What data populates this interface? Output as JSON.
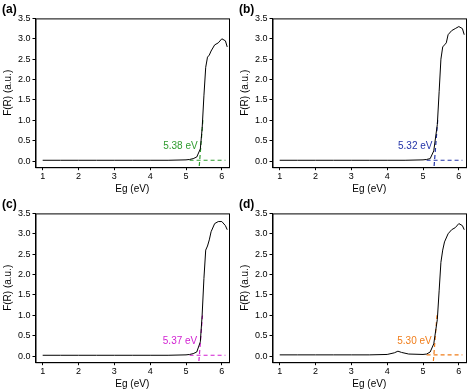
{
  "chart_data": [
    {
      "type": "line",
      "title": "(a)",
      "x_label": "Eg (eV)",
      "y_label": "F(R) (a.u.)",
      "xlim": [
        0.8,
        6.2
      ],
      "xticks": [
        1,
        2,
        3,
        4,
        5,
        6
      ],
      "ylim": [
        -0.15,
        3.5
      ],
      "yticks": [
        {
          "value": 0,
          "label": "0.0"
        },
        0.5,
        {
          "value": 1,
          "label": "1.0"
        },
        1.5,
        {
          "value": 2,
          "label": "2.0"
        },
        2.5,
        {
          "value": 3,
          "label": "3.0"
        },
        3.5
      ],
      "grid": false,
      "annotation": {
        "text": "5.38 eV",
        "value": 5.38,
        "color": "#2e9b2e"
      },
      "series": [
        {
          "color": "#000000",
          "line_style": "solid",
          "x": [
            1,
            1.5,
            2,
            2.5,
            3,
            3.5,
            4,
            4.5,
            5,
            5.1,
            5.2,
            5.3,
            5.4,
            5.45,
            5.5,
            5.55,
            5.6,
            5.65,
            5.7,
            5.8,
            5.9,
            6.0,
            6.1,
            6.15
          ],
          "values": [
            0.02,
            0.02,
            0.02,
            0.02,
            0.02,
            0.02,
            0.02,
            0.02,
            0.03,
            0.04,
            0.06,
            0.1,
            0.3,
            0.8,
            1.6,
            2.3,
            2.55,
            2.6,
            2.7,
            2.85,
            2.9,
            3.0,
            2.95,
            2.8
          ]
        },
        {
          "color": "#2e9b2e",
          "line_style": "dashed",
          "x": [
            5.37,
            5.47
          ],
          "values": [
            -0.12,
            1.0
          ]
        },
        {
          "color": "#2e9b2e",
          "line_style": "dashed",
          "x": [
            5.1,
            6.1
          ],
          "values": [
            0.02,
            0.02
          ]
        }
      ]
    },
    {
      "type": "line",
      "title": "(b)",
      "x_label": "Eg (eV)",
      "y_label": "F(R) (a.u.)",
      "xlim": [
        0.8,
        6.2
      ],
      "xticks": [
        1,
        2,
        3,
        4,
        5,
        6
      ],
      "ylim": [
        -0.15,
        3.5
      ],
      "yticks": [
        {
          "value": 0,
          "label": "0.0"
        },
        0.5,
        {
          "value": 1,
          "label": "1.0"
        },
        1.5,
        {
          "value": 2,
          "label": "2.0"
        },
        2.5,
        {
          "value": 3,
          "label": "3.0"
        },
        3.5
      ],
      "grid": false,
      "annotation": {
        "text": "5.32 eV",
        "value": 5.32,
        "color": "#2233a8"
      },
      "series": [
        {
          "color": "#000000",
          "line_style": "solid",
          "x": [
            1,
            1.5,
            2,
            2.5,
            3,
            3.5,
            4,
            4.5,
            5,
            5.1,
            5.2,
            5.3,
            5.4,
            5.45,
            5.5,
            5.55,
            5.6,
            5.65,
            5.7,
            5.8,
            5.9,
            6.0,
            6.1,
            6.15
          ],
          "values": [
            0.02,
            0.02,
            0.02,
            0.02,
            0.02,
            0.02,
            0.02,
            0.02,
            0.03,
            0.04,
            0.06,
            0.25,
            0.9,
            1.7,
            2.5,
            2.8,
            2.85,
            2.9,
            3.1,
            3.2,
            3.25,
            3.3,
            3.25,
            3.1
          ]
        },
        {
          "color": "#2233a8",
          "line_style": "dashed",
          "x": [
            5.31,
            5.41
          ],
          "values": [
            -0.12,
            1.0
          ]
        },
        {
          "color": "#2233a8",
          "line_style": "dashed",
          "x": [
            5.1,
            6.1
          ],
          "values": [
            0.02,
            0.02
          ]
        }
      ]
    },
    {
      "type": "line",
      "title": "(c)",
      "x_label": "Eg (eV)",
      "y_label": "F(R) (a.u.)",
      "xlim": [
        0.8,
        6.2
      ],
      "xticks": [
        1,
        2,
        3,
        4,
        5,
        6
      ],
      "ylim": [
        -0.15,
        3.5
      ],
      "yticks": [
        {
          "value": 0,
          "label": "0.0"
        },
        0.5,
        {
          "value": 1,
          "label": "1.0"
        },
        1.5,
        {
          "value": 2,
          "label": "2.0"
        },
        2.5,
        {
          "value": 3,
          "label": "3.0"
        },
        3.5
      ],
      "grid": false,
      "annotation": {
        "text": "5.37 eV",
        "value": 5.37,
        "color": "#d11fd1"
      },
      "series": [
        {
          "color": "#000000",
          "line_style": "solid",
          "x": [
            1,
            1.5,
            2,
            2.5,
            3,
            3.5,
            4,
            4.5,
            5,
            5.1,
            5.2,
            5.3,
            5.4,
            5.45,
            5.5,
            5.55,
            5.6,
            5.65,
            5.7,
            5.8,
            5.9,
            6.0,
            6.1,
            6.15
          ],
          "values": [
            0.02,
            0.02,
            0.02,
            0.02,
            0.02,
            0.02,
            0.02,
            0.02,
            0.03,
            0.04,
            0.06,
            0.1,
            0.35,
            1.0,
            1.9,
            2.6,
            2.7,
            2.85,
            3.05,
            3.25,
            3.3,
            3.3,
            3.2,
            3.1
          ]
        },
        {
          "color": "#d11fd1",
          "line_style": "dashed",
          "x": [
            5.36,
            5.46
          ],
          "values": [
            -0.12,
            1.0
          ]
        },
        {
          "color": "#d11fd1",
          "line_style": "dashed",
          "x": [
            5.1,
            6.1
          ],
          "values": [
            0.02,
            0.02
          ]
        }
      ]
    },
    {
      "type": "line",
      "title": "(d)",
      "x_label": "Eg (eV)",
      "y_label": "F(R) (a.u.)",
      "xlim": [
        0.8,
        6.2
      ],
      "xticks": [
        1,
        2,
        3,
        4,
        5,
        6
      ],
      "ylim": [
        -0.15,
        3.5
      ],
      "yticks": [
        {
          "value": 0,
          "label": "0.0"
        },
        0.5,
        {
          "value": 1,
          "label": "1.0"
        },
        1.5,
        {
          "value": 2,
          "label": "2.0"
        },
        2.5,
        {
          "value": 3,
          "label": "3.0"
        },
        3.5
      ],
      "grid": false,
      "annotation": {
        "text": "5.30 eV",
        "value": 5.3,
        "color": "#f07d1a"
      },
      "series": [
        {
          "color": "#000000",
          "line_style": "solid",
          "x": [
            1,
            1.5,
            2,
            2.5,
            3,
            3.5,
            4,
            4.2,
            4.3,
            4.4,
            4.6,
            5,
            5.1,
            5.2,
            5.3,
            5.4,
            5.45,
            5.5,
            5.55,
            5.6,
            5.7,
            5.8,
            5.9,
            6.0,
            6.1,
            6.15
          ],
          "values": [
            0.03,
            0.03,
            0.03,
            0.03,
            0.03,
            0.03,
            0.04,
            0.08,
            0.12,
            0.09,
            0.05,
            0.04,
            0.05,
            0.1,
            0.3,
            0.9,
            1.6,
            2.3,
            2.6,
            2.8,
            3.0,
            3.1,
            3.15,
            3.25,
            3.2,
            3.1
          ]
        },
        {
          "color": "#f07d1a",
          "line_style": "dashed",
          "x": [
            5.29,
            5.39
          ],
          "values": [
            -0.12,
            1.0
          ]
        },
        {
          "color": "#f07d1a",
          "line_style": "dashed",
          "x": [
            5.1,
            6.1
          ],
          "values": [
            0.03,
            0.03
          ]
        }
      ]
    }
  ]
}
